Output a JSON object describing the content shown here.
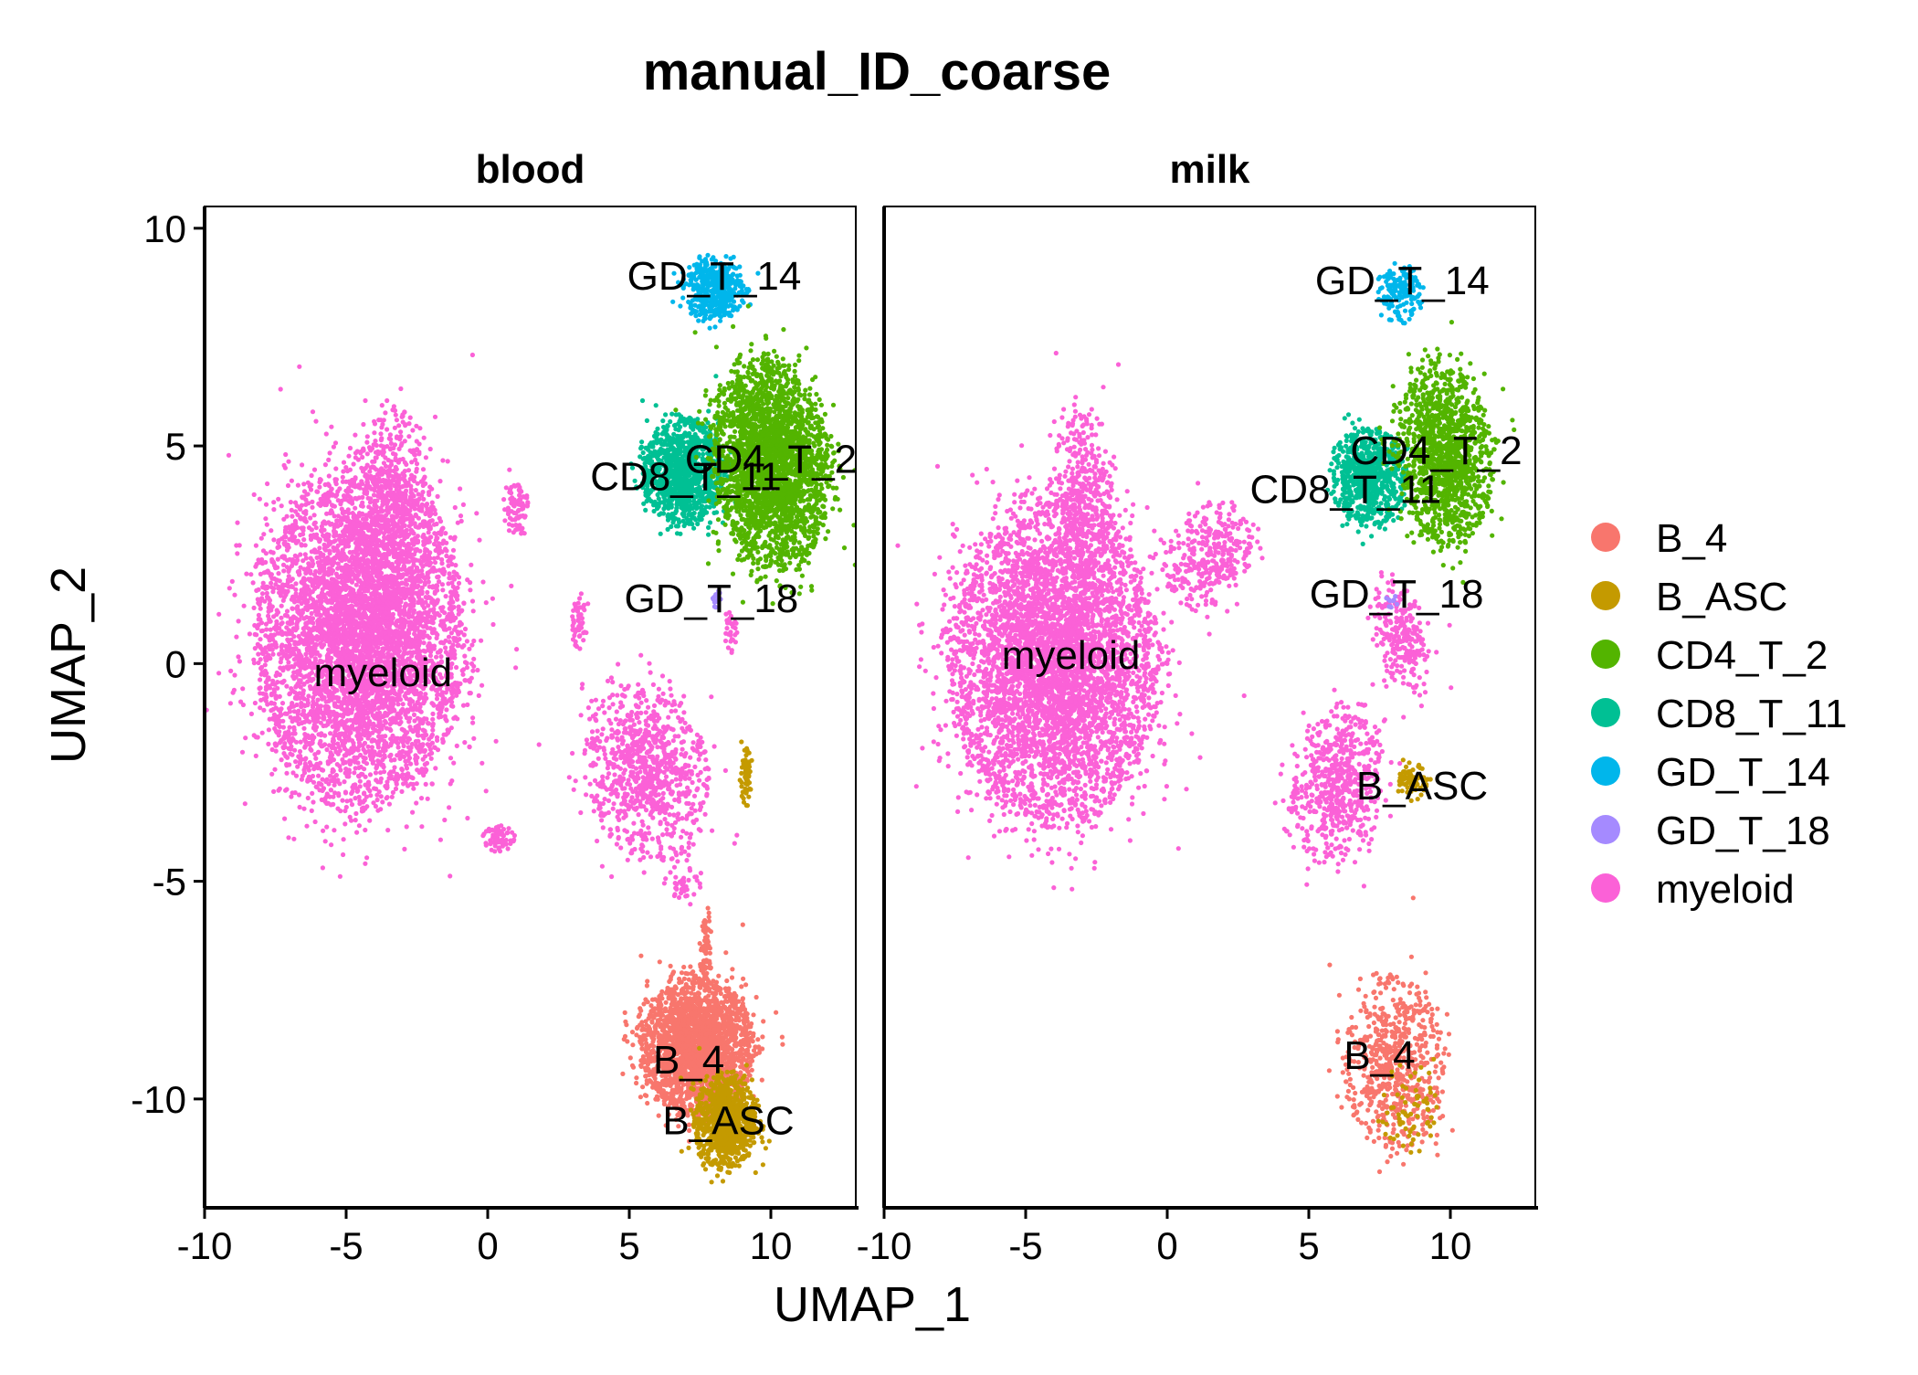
{
  "chart_data": {
    "type": "scatter",
    "title": "manual_ID_coarse",
    "xlabel": "UMAP_1",
    "ylabel": "UMAP_2",
    "xlim": [
      -10,
      13
    ],
    "ylim": [
      -12.5,
      10.5
    ],
    "x_ticks": [
      -10,
      -5,
      0,
      5,
      10
    ],
    "x_tick_labels": [
      "-10",
      "-5",
      "0",
      "5",
      "10"
    ],
    "y_ticks": [
      -10,
      -5,
      0,
      5,
      10
    ],
    "y_tick_labels": [
      "-10",
      "-5",
      "0",
      "5",
      "10"
    ],
    "grid": false,
    "legend_position": "right",
    "legend": [
      {
        "name": "B_4",
        "color": "#F8766D"
      },
      {
        "name": "B_ASC",
        "color": "#C49A00"
      },
      {
        "name": "CD4_T_2",
        "color": "#53B400"
      },
      {
        "name": "CD8_T_11",
        "color": "#00C094"
      },
      {
        "name": "GD_T_14",
        "color": "#00B6EB"
      },
      {
        "name": "GD_T_18",
        "color": "#A58AFF"
      },
      {
        "name": "myeloid",
        "color": "#FB61D7"
      }
    ],
    "panels": [
      {
        "name": "blood",
        "cluster_labels": [
          {
            "text": "GD_T_14",
            "x": 8.0,
            "y": 8.9
          },
          {
            "text": "CD4_T_2",
            "x": 10.0,
            "y": 4.7
          },
          {
            "text": "CD8_T_11",
            "x": 7.0,
            "y": 4.3
          },
          {
            "text": "GD_T_18",
            "x": 7.9,
            "y": 1.5
          },
          {
            "text": "myeloid",
            "x": -3.7,
            "y": -0.2
          },
          {
            "text": "B_4",
            "x": 7.1,
            "y": -9.1
          },
          {
            "text": "B_ASC",
            "x": 8.5,
            "y": -10.5
          }
        ]
      },
      {
        "name": "milk",
        "cluster_labels": [
          {
            "text": "GD_T_14",
            "x": 8.3,
            "y": 8.8
          },
          {
            "text": "CD4_T_2",
            "x": 9.5,
            "y": 4.9
          },
          {
            "text": "CD8_T_11",
            "x": 6.3,
            "y": 4.0
          },
          {
            "text": "GD_T_18",
            "x": 8.1,
            "y": 1.6
          },
          {
            "text": "myeloid",
            "x": -3.4,
            "y": 0.2
          },
          {
            "text": "B_ASC",
            "x": 9.0,
            "y": -2.8
          },
          {
            "text": "B_4",
            "x": 7.5,
            "y": -9.0
          }
        ]
      }
    ]
  }
}
